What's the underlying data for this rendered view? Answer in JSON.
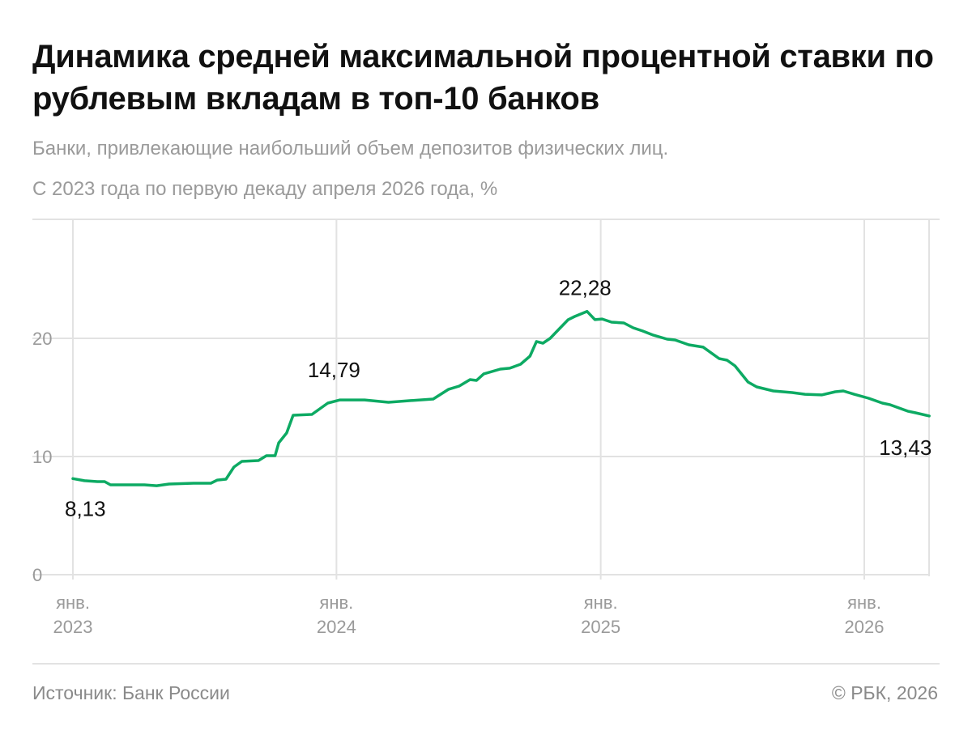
{
  "title": "Динамика средней максимальной процентной ставки по рублевым вкладам в топ-10 банков",
  "subtitle_lines": [
    "Банки, привлекающие наибольший объем депозитов физических лиц.",
    "С 2023 года по первую декаду апреля 2026 года, %"
  ],
  "footer": {
    "source": "Источник: Банк России",
    "copyright": "© РБК, 2026"
  },
  "colors": {
    "line": "#0daa63",
    "grid": "#e2e2e2",
    "text": "#111111",
    "muted": "#9a9a9a"
  },
  "chart_data": {
    "type": "line",
    "title": "Динамика средней максимальной процентной ставки по рублевым вкладам в топ-10 банков",
    "ylim": [
      0,
      30
    ],
    "yticks": [
      {
        "value": 0,
        "label": "0"
      },
      {
        "value": 10,
        "label": "10"
      },
      {
        "value": 20,
        "label": "20"
      }
    ],
    "xticks": [
      {
        "date": "2023-01-01",
        "line1": "янв.",
        "line2": "2023"
      },
      {
        "date": "2024-01-01",
        "line1": "янв.",
        "line2": "2024"
      },
      {
        "date": "2025-01-01",
        "line1": "янв.",
        "line2": "2025"
      },
      {
        "date": "2026-01-01",
        "line1": "янв.",
        "line2": "2026"
      }
    ],
    "grid": true,
    "annotations": [
      {
        "date": "2023-01-01",
        "value": 8.13,
        "label": "8,13"
      },
      {
        "date": "2024-01-06",
        "value": 14.79,
        "label": "14,79"
      },
      {
        "date": "2024-12-13",
        "value": 22.28,
        "label": "22,28"
      },
      {
        "date": "2026-04-01",
        "value": 13.43,
        "label": "13,43"
      }
    ],
    "x": [
      "2023-01-01",
      "2023-01-17",
      "2023-02-04",
      "2023-02-14",
      "2023-02-22",
      "2023-04-10",
      "2023-04-27",
      "2023-05-14",
      "2023-06-17",
      "2023-07-11",
      "2023-07-20",
      "2023-08-01",
      "2023-08-12",
      "2023-08-23",
      "2023-09-15",
      "2023-09-26",
      "2023-10-08",
      "2023-10-13",
      "2023-10-24",
      "2023-11-02",
      "2023-11-28",
      "2023-12-09",
      "2023-12-20",
      "2024-01-06",
      "2024-02-09",
      "2024-03-13",
      "2024-04-13",
      "2024-05-14",
      "2024-06-04",
      "2024-06-19",
      "2024-07-04",
      "2024-07-13",
      "2024-07-23",
      "2024-08-15",
      "2024-08-28",
      "2024-09-12",
      "2024-09-25",
      "2024-10-04",
      "2024-10-13",
      "2024-10-23",
      "2024-11-06",
      "2024-11-17",
      "2024-11-26",
      "2024-12-13",
      "2024-12-24",
      "2025-01-03",
      "2025-01-16",
      "2025-02-02",
      "2025-02-15",
      "2025-02-28",
      "2025-03-15",
      "2025-04-03",
      "2025-04-14",
      "2025-05-03",
      "2025-05-23",
      "2025-06-14",
      "2025-06-25",
      "2025-07-06",
      "2025-07-24",
      "2025-08-05",
      "2025-08-28",
      "2025-09-23",
      "2025-10-11",
      "2025-11-03",
      "2025-11-22",
      "2025-12-03",
      "2025-12-18",
      "2026-01-07",
      "2026-01-26",
      "2026-02-06",
      "2026-03-02",
      "2026-03-13",
      "2026-04-01"
    ],
    "series": [
      {
        "values": [
          8.13,
          7.95,
          7.88,
          7.88,
          7.6,
          7.6,
          7.53,
          7.67,
          7.74,
          7.74,
          8.01,
          8.08,
          9.11,
          9.59,
          9.66,
          10.07,
          10.07,
          11.16,
          11.99,
          13.49,
          13.56,
          14.04,
          14.52,
          14.79,
          14.79,
          14.59,
          14.73,
          14.86,
          15.68,
          15.96,
          16.51,
          16.44,
          16.99,
          17.4,
          17.47,
          17.81,
          18.49,
          19.73,
          19.59,
          20.0,
          20.89,
          21.58,
          21.85,
          22.28,
          21.58,
          21.64,
          21.37,
          21.3,
          20.89,
          20.62,
          20.27,
          19.93,
          19.86,
          19.45,
          19.25,
          18.29,
          18.15,
          17.67,
          16.3,
          15.89,
          15.55,
          15.41,
          15.27,
          15.21,
          15.48,
          15.55,
          15.27,
          14.93,
          14.52,
          14.38,
          13.84,
          13.7,
          13.43
        ]
      }
    ]
  }
}
